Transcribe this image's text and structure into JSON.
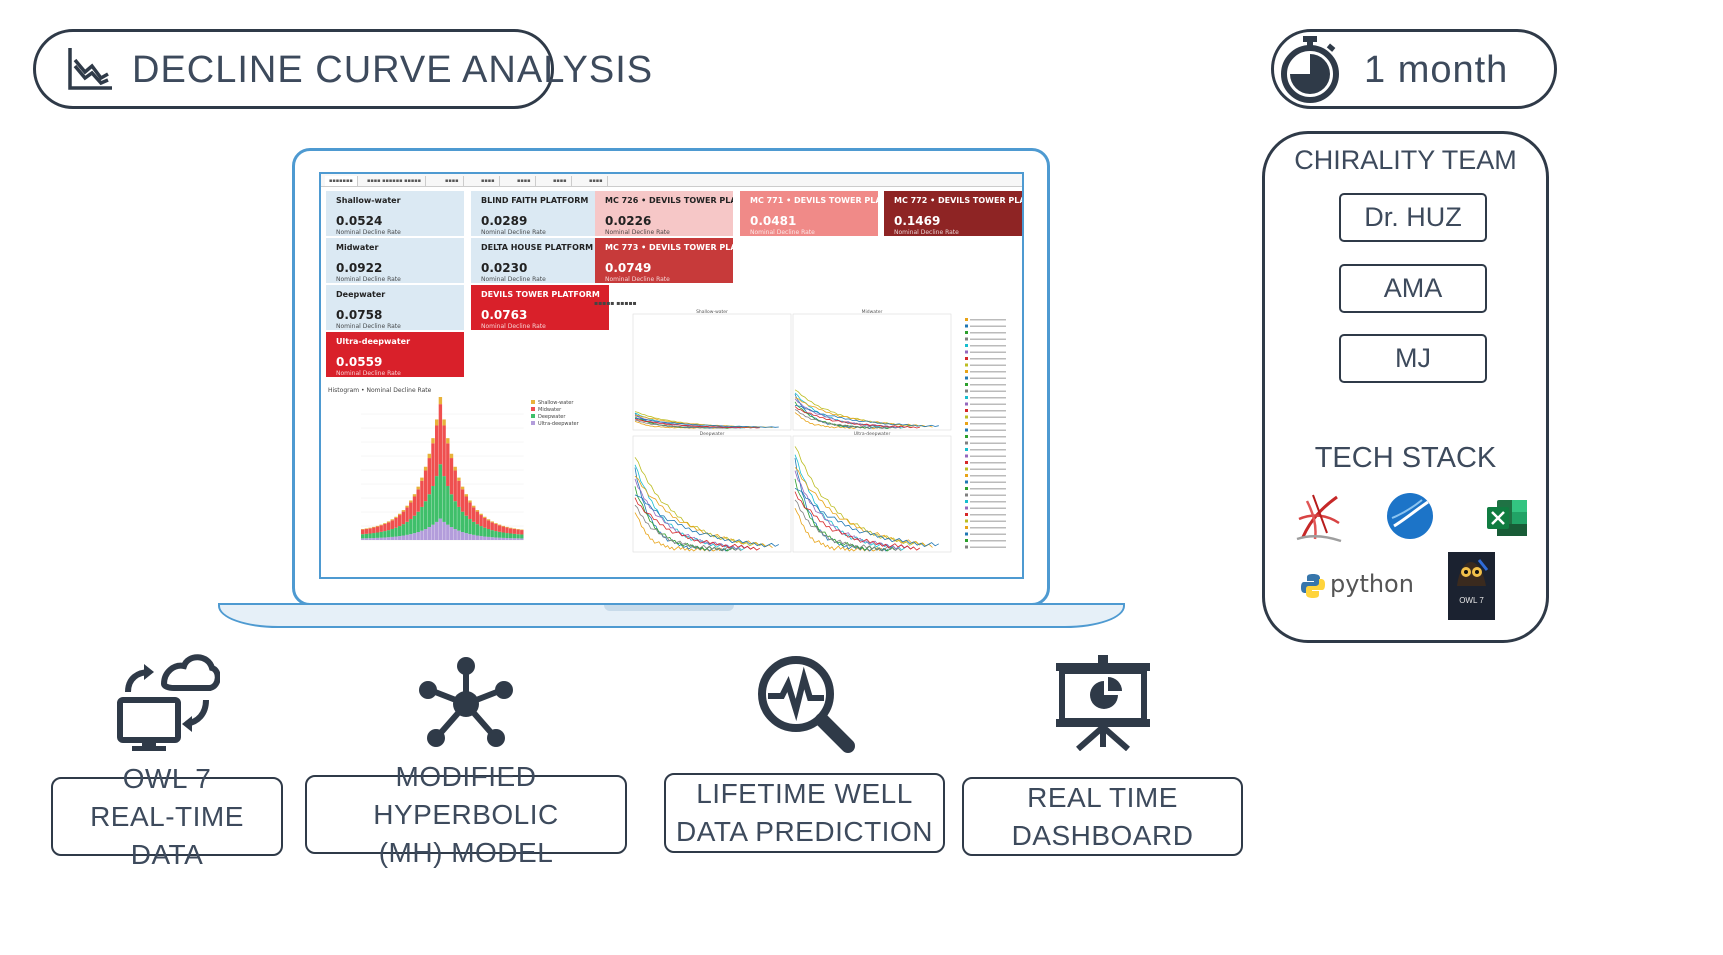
{
  "header": {
    "title": "DECLINE CURVE ANALYSIS",
    "duration": "1 month"
  },
  "team": {
    "title": "CHIRALITY TEAM",
    "members": [
      "Dr. HUZ",
      "AMA",
      "MJ"
    ]
  },
  "tech_stack": {
    "title": "TECH STACK",
    "items": [
      "sql-server-icon",
      "tibco-spotfire-icon",
      "excel-icon",
      "python-logo",
      "owl7-database-icon"
    ],
    "python_label": "python",
    "owl_label": "OWL 7"
  },
  "features": [
    {
      "line1": "OWL 7",
      "line2": "REAL-TIME DATA",
      "icon": "cloud-sync-monitor-icon"
    },
    {
      "line1": "MODIFIED HYPERBOLIC",
      "line2": "(MH) MODEL",
      "icon": "network-hub-icon"
    },
    {
      "line1": "LIFETIME WELL",
      "line2": "DATA PREDICTION",
      "icon": "heartbeat-search-icon"
    },
    {
      "line1": "REAL TIME",
      "line2": "DASHBOARD",
      "icon": "presentation-board-icon"
    }
  ],
  "dashboard": {
    "kpis": [
      {
        "title": "Shallow-water",
        "value": "0.0524",
        "bg": "#dbe9f3",
        "fg": "#222"
      },
      {
        "title": "BLIND FAITH PLATFORM",
        "value": "0.0289",
        "bg": "#dbe9f3",
        "fg": "#222"
      },
      {
        "title": "MC 726 • DEVILS TOWER PLATFORM",
        "value": "0.0226",
        "bg": "#f6c7c7",
        "fg": "#222"
      },
      {
        "title": "MC 771 • DEVILS TOWER PLATFORM",
        "value": "0.0481",
        "bg": "#f08a88",
        "fg": "#fff"
      },
      {
        "title": "MC 772 • DEVILS TOWER PLATFORM",
        "value": "0.1469",
        "bg": "#8e2424",
        "fg": "#fff"
      },
      {
        "title": "Midwater",
        "value": "0.0922",
        "bg": "#dbe9f3",
        "fg": "#222"
      },
      {
        "title": "DELTA HOUSE PLATFORM",
        "value": "0.0230",
        "bg": "#dbe9f3",
        "fg": "#222"
      },
      {
        "title": "MC 773 • DEVILS TOWER PLATFORM",
        "value": "0.0749",
        "bg": "#c73a3a",
        "fg": "#fff"
      },
      {
        "title": "Deepwater",
        "value": "0.0758",
        "bg": "#dbe9f3",
        "fg": "#222"
      },
      {
        "title": "DEVILS TOWER PLATFORM",
        "value": "0.0763",
        "bg": "#d9202a",
        "fg": "#fff"
      },
      {
        "title": "Ultra-deepwater",
        "value": "0.0559",
        "bg": "#d9202a",
        "fg": "#fff"
      }
    ],
    "kpi_subtitle": "Nominal Decline Rate",
    "histogram_title": "Histogram • Nominal Decline Rate",
    "histogram_legend": [
      "Shallow-water",
      "Midwater",
      "Deepwater",
      "Ultra-deepwater"
    ],
    "histogram_colors": [
      "#e8b23a",
      "#ef4f4f",
      "#3fbf6a",
      "#b39ddb"
    ],
    "panel_titles": [
      "Shallow-water",
      "Midwater",
      "Deepwater",
      "Ultra-deepwater"
    ]
  }
}
